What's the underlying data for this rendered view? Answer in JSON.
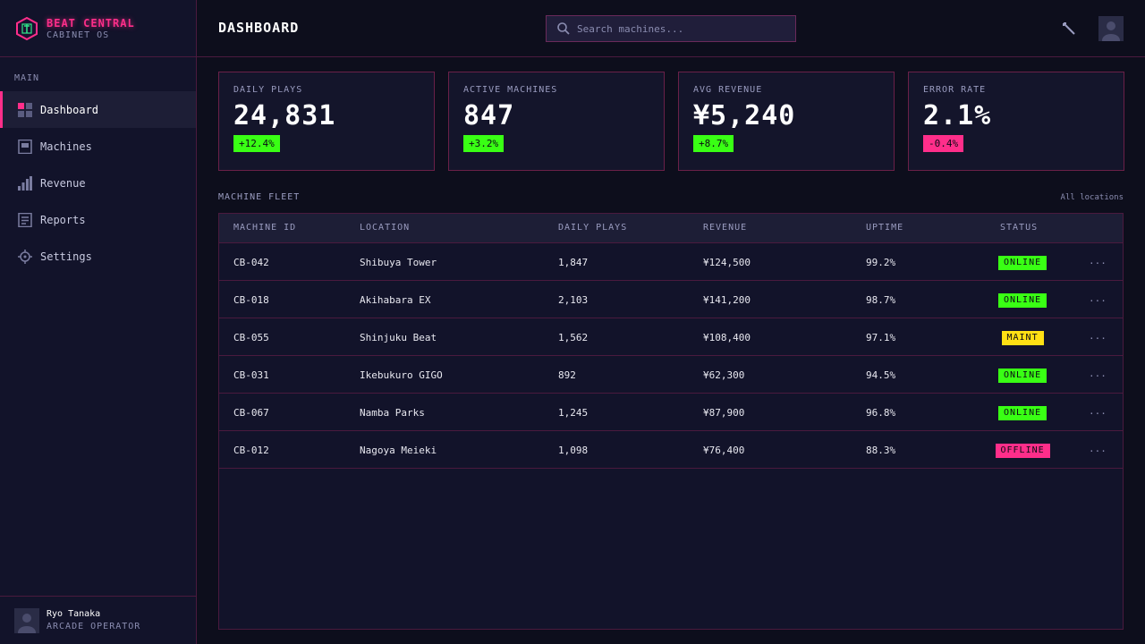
{
  "brand": {
    "title": "BEAT CENTRAL",
    "subtitle": "CABINET OS"
  },
  "sidebar": {
    "section": "MAIN",
    "items": [
      {
        "label": "Dashboard",
        "icon": "grid-icon"
      },
      {
        "label": "Machines",
        "icon": "cabinet-icon"
      },
      {
        "label": "Revenue",
        "icon": "bar-chart-icon"
      },
      {
        "label": "Reports",
        "icon": "document-icon"
      },
      {
        "label": "Settings",
        "icon": "crosshair-icon"
      }
    ],
    "active_index": 0
  },
  "user": {
    "name": "Ryo Tanaka",
    "role": "ARCADE OPERATOR"
  },
  "header": {
    "title": "DASHBOARD",
    "search_placeholder": "Search machines..."
  },
  "kpis": [
    {
      "label": "DAILY PLAYS",
      "value": "24,831",
      "delta": "+12.4%",
      "trend": "up"
    },
    {
      "label": "ACTIVE MACHINES",
      "value": "847",
      "delta": "+3.2%",
      "trend": "up"
    },
    {
      "label": "AVG REVENUE",
      "value": "¥5,240",
      "delta": "+8.7%",
      "trend": "up"
    },
    {
      "label": "ERROR RATE",
      "value": "2.1%",
      "delta": "-0.4%",
      "trend": "down"
    }
  ],
  "fleet": {
    "title": "MACHINE FLEET",
    "filter": "All locations",
    "columns": [
      "MACHINE ID",
      "LOCATION",
      "DAILY PLAYS",
      "REVENUE",
      "UPTIME",
      "STATUS"
    ],
    "rows": [
      {
        "id": "CB-042",
        "location": "Shibuya Tower",
        "plays": "1,847",
        "revenue": "¥124,500",
        "uptime": "99.2%",
        "status": "ONLINE"
      },
      {
        "id": "CB-018",
        "location": "Akihabara EX",
        "plays": "2,103",
        "revenue": "¥141,200",
        "uptime": "98.7%",
        "status": "ONLINE"
      },
      {
        "id": "CB-055",
        "location": "Shinjuku Beat",
        "plays": "1,562",
        "revenue": "¥108,400",
        "uptime": "97.1%",
        "status": "MAINT"
      },
      {
        "id": "CB-031",
        "location": "Ikebukuro GIGO",
        "plays": "892",
        "revenue": "¥62,300",
        "uptime": "94.5%",
        "status": "ONLINE"
      },
      {
        "id": "CB-067",
        "location": "Namba Parks",
        "plays": "1,245",
        "revenue": "¥87,900",
        "uptime": "96.8%",
        "status": "ONLINE"
      },
      {
        "id": "CB-012",
        "location": "Nagoya Meieki",
        "plays": "1,098",
        "revenue": "¥76,400",
        "uptime": "88.3%",
        "status": "OFFLINE"
      }
    ],
    "more_label": "..."
  },
  "colors": {
    "accent": "#ff2e8a",
    "online": "#39ff14",
    "maint": "#ffe014",
    "offline": "#ff2e8a",
    "up": "#39ff14",
    "down": "#ff2e8a"
  }
}
